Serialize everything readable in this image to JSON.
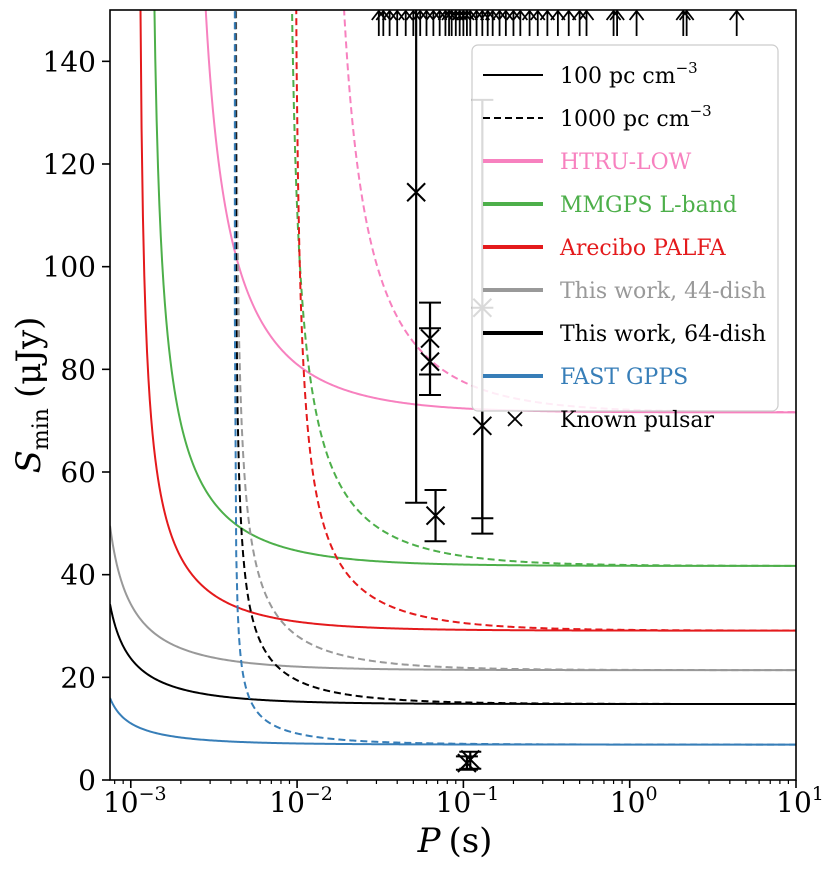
{
  "chart_data": {
    "type": "line",
    "xscale": "log",
    "xlim": [
      0.00075,
      10
    ],
    "ylim": [
      0,
      150
    ],
    "xlabel": "P (s)",
    "xlabel_var": "P",
    "xlabel_unit": "(s)",
    "ylabel": "S_min (μJy)",
    "ylabel_var": "S",
    "ylabel_sub": "min",
    "ylabel_unit": "(μJy)",
    "xticks": [
      {
        "value": 0.001,
        "base": "10",
        "exp": "−3"
      },
      {
        "value": 0.01,
        "base": "10",
        "exp": "−2"
      },
      {
        "value": 0.1,
        "base": "10",
        "exp": "−1"
      },
      {
        "value": 1,
        "base": "10",
        "exp": "0"
      },
      {
        "value": 10,
        "base": "10",
        "exp": "1"
      }
    ],
    "yticks": [
      0,
      20,
      40,
      60,
      80,
      100,
      120,
      140
    ],
    "legend": {
      "position": "upper-right",
      "entries": [
        {
          "label_main": "100 pc cm",
          "label_sup": "−3",
          "style": "solid",
          "color": "#000000"
        },
        {
          "label_main": "1000 pc cm",
          "label_sup": "−3",
          "style": "dashed",
          "color": "#000000"
        },
        {
          "label_main": "HTRU-LOW",
          "style": "thick",
          "color": "#f781bf"
        },
        {
          "label_main": "MMGPS L-band",
          "style": "thick",
          "color": "#4daf4a"
        },
        {
          "label_main": "Arecibo PALFA",
          "style": "thick",
          "color": "#e41a1c"
        },
        {
          "label_main": "This work, 44-dish",
          "style": "thick",
          "color": "#999999"
        },
        {
          "label_main": "This work, 64-dish",
          "style": "thick",
          "color": "#000000"
        },
        {
          "label_main": "FAST GPPS",
          "style": "thick",
          "color": "#377eb8"
        },
        {
          "label_main": "Known pulsar",
          "style": "marker",
          "color": "#000000"
        }
      ]
    },
    "series": [
      {
        "name": "HTRU-LOW",
        "color": "#f781bf",
        "s_inf": 71.6,
        "a_100": 0.00218,
        "a_1000": 0.0148,
        "k_100": 118,
        "p_100": 0.00075
      },
      {
        "name": "MMGPS L-band",
        "color": "#4daf4a",
        "s_inf": 41.7,
        "a_100": 0.00128,
        "a_1000": 0.0086,
        "k_100": 91,
        "p_100": 0.00075
      },
      {
        "name": "Arecibo PALFA",
        "color": "#e41a1c",
        "s_inf": 29.1,
        "a_100": 0.0011,
        "a_1000": 0.0095,
        "k_100": 91,
        "p_100": 0.00075
      },
      {
        "name": "This work, 44-dish",
        "color": "#999999",
        "s_inf": 21.4,
        "a_100": 0.00061,
        "a_1000": 0.0042,
        "k_100": 39.5,
        "p_100": 0.00075
      },
      {
        "name": "This work, 64-dish",
        "color": "#000000",
        "s_inf": 14.8,
        "a_100": 0.00061,
        "a_1000": 0.0042,
        "k_100": 27,
        "p_100": 0.00075
      },
      {
        "name": "FAST GPPS",
        "color": "#377eb8",
        "s_inf": 6.9,
        "a_100": 0.00061,
        "a_1000": 0.0042,
        "k_100": 9.7,
        "p_100": 0.00075
      }
    ],
    "known_pulsars": [
      {
        "p": 0.052,
        "s": 114.5,
        "ylo": 54,
        "yhi": 150
      },
      {
        "p": 0.063,
        "s": 86,
        "ylo": 79,
        "yhi": 93
      },
      {
        "p": 0.063,
        "s": 81.5,
        "ylo": 75,
        "yhi": 88
      },
      {
        "p": 0.068,
        "s": 51.5,
        "ylo": 46.5,
        "yhi": 56.5
      },
      {
        "p": 0.13,
        "s": 92,
        "ylo": 51,
        "yhi": 132.5
      },
      {
        "p": 0.13,
        "s": 69,
        "ylo": 48,
        "yhi": 92
      },
      {
        "p": 0.11,
        "s": 4,
        "ylo": 2.2,
        "yhi": 5.5
      },
      {
        "p": 0.105,
        "s": 3.3,
        "ylo": 2,
        "yhi": 4.6
      }
    ],
    "upper_arrows_p": [
      0.031,
      0.033,
      0.036,
      0.04,
      0.045,
      0.05,
      0.055,
      0.06,
      0.066,
      0.072,
      0.078,
      0.082,
      0.085,
      0.09,
      0.095,
      0.1,
      0.105,
      0.11,
      0.12,
      0.13,
      0.14,
      0.15,
      0.165,
      0.18,
      0.2,
      0.22,
      0.25,
      0.28,
      0.32,
      0.37,
      0.43,
      0.5,
      0.55,
      0.8,
      0.84,
      1.1,
      2.1,
      2.2,
      4.4
    ]
  }
}
